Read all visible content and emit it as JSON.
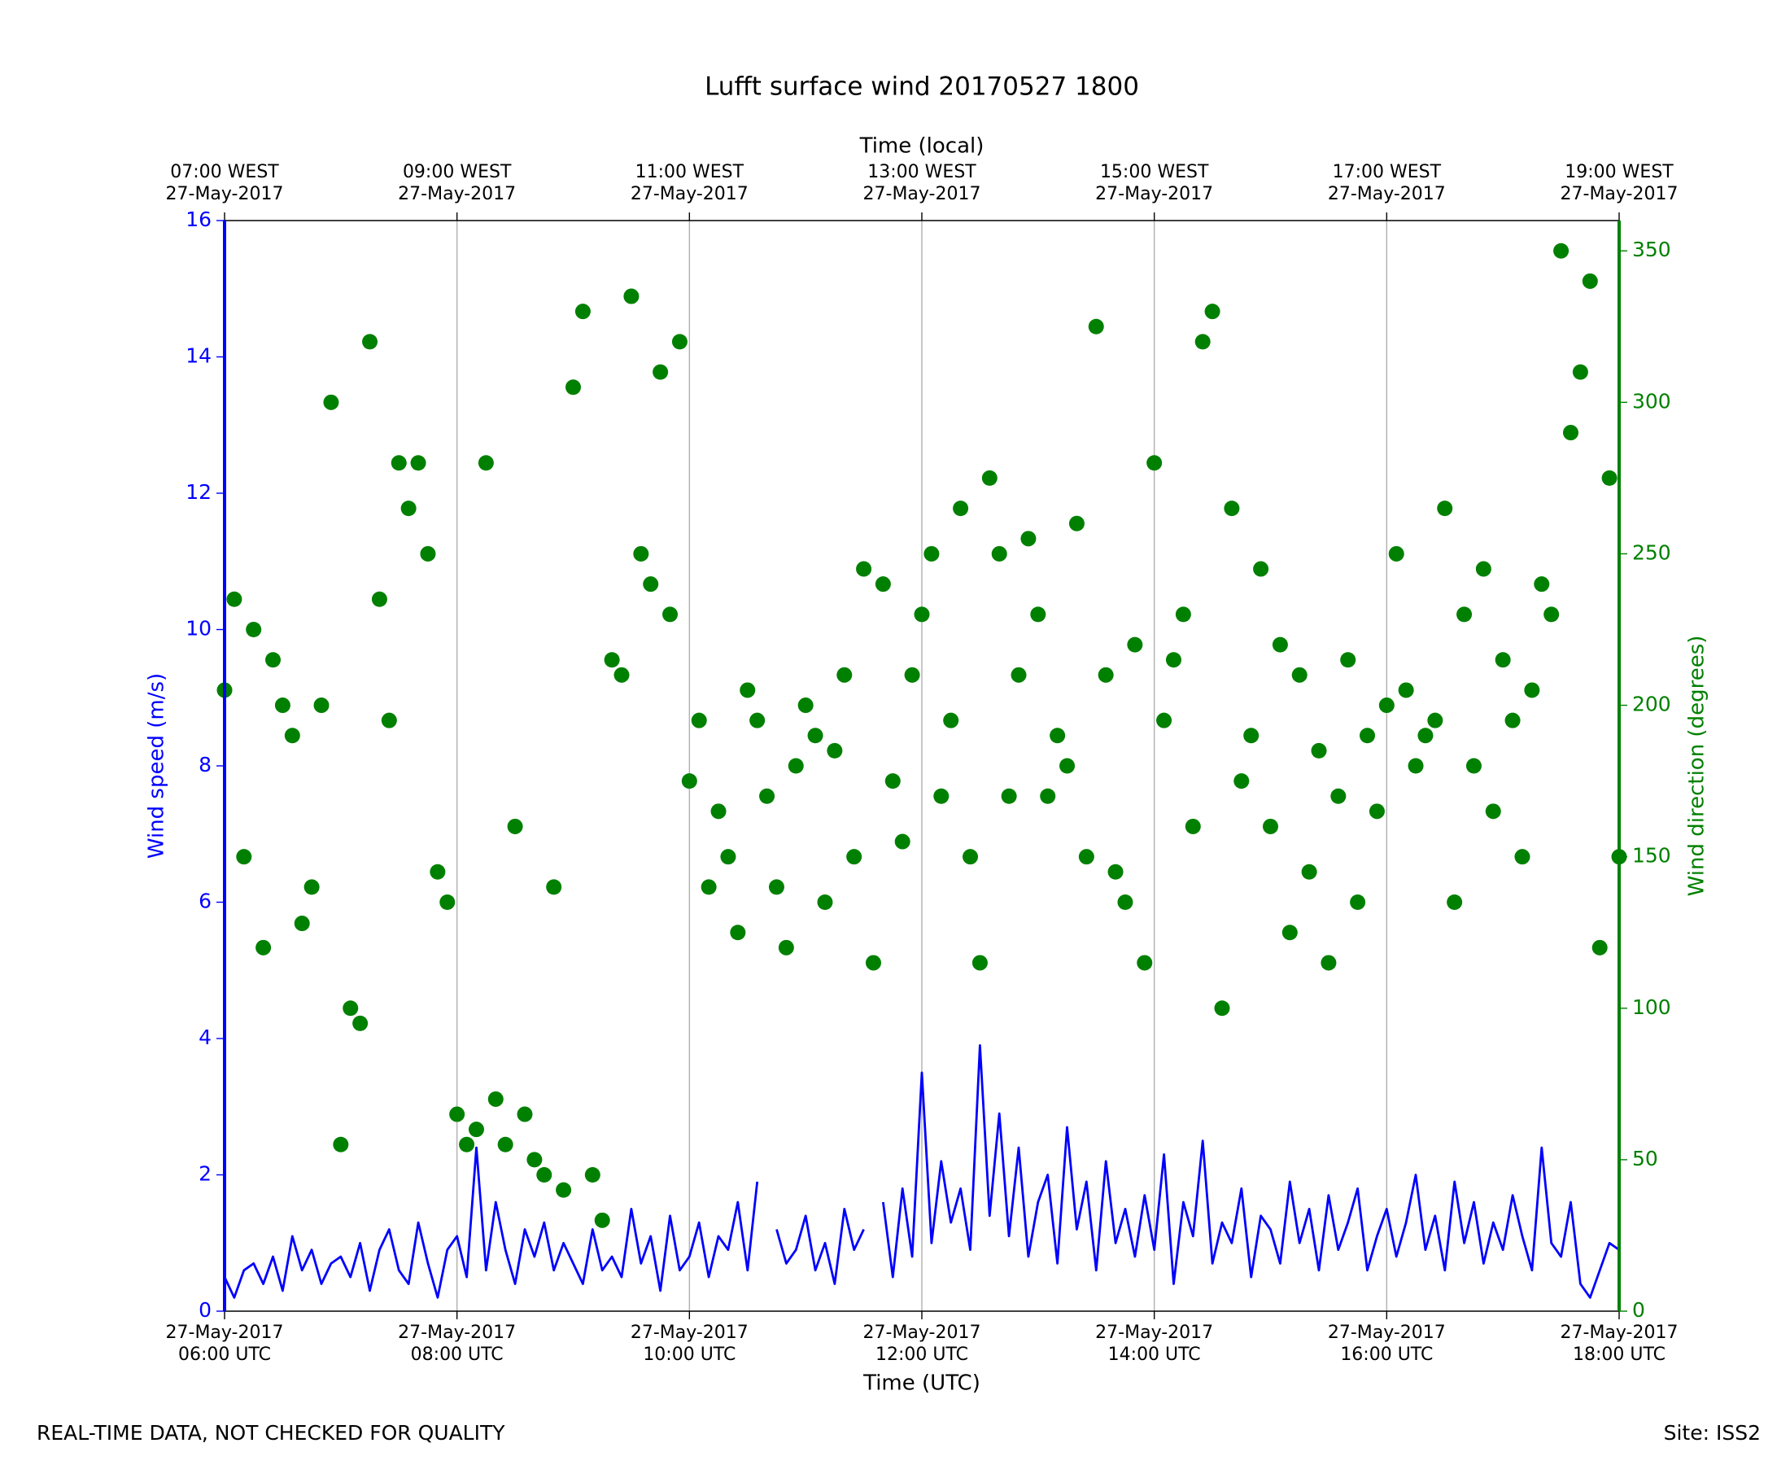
{
  "chart_data": {
    "type": "line",
    "title": "Lufft surface wind 20170527 1800",
    "xlabel": "Time (UTC)",
    "x2label": "Time (local)",
    "ylabel": "Wind speed (m/s)",
    "y2label": "Wind direction (degrees)",
    "footer_left": "REAL-TIME DATA, NOT CHECKED FOR QUALITY",
    "footer_right": "Site: ISS2",
    "grid": "x",
    "xlim": [
      "06:00",
      "18:00"
    ],
    "xticks": [
      {
        "value": "06:00",
        "label": [
          "27-May-2017",
          "06:00 UTC"
        ]
      },
      {
        "value": "08:00",
        "label": [
          "27-May-2017",
          "08:00 UTC"
        ]
      },
      {
        "value": "10:00",
        "label": [
          "27-May-2017",
          "10:00 UTC"
        ]
      },
      {
        "value": "12:00",
        "label": [
          "27-May-2017",
          "12:00 UTC"
        ]
      },
      {
        "value": "14:00",
        "label": [
          "27-May-2017",
          "14:00 UTC"
        ]
      },
      {
        "value": "16:00",
        "label": [
          "27-May-2017",
          "16:00 UTC"
        ]
      },
      {
        "value": "18:00",
        "label": [
          "27-May-2017",
          "18:00 UTC"
        ]
      }
    ],
    "x2ticks": [
      {
        "value": "06:00",
        "label": [
          "07:00 WEST",
          "27-May-2017"
        ]
      },
      {
        "value": "08:00",
        "label": [
          "09:00 WEST",
          "27-May-2017"
        ]
      },
      {
        "value": "10:00",
        "label": [
          "11:00 WEST",
          "27-May-2017"
        ]
      },
      {
        "value": "12:00",
        "label": [
          "13:00 WEST",
          "27-May-2017"
        ]
      },
      {
        "value": "14:00",
        "label": [
          "15:00 WEST",
          "27-May-2017"
        ]
      },
      {
        "value": "16:00",
        "label": [
          "17:00 WEST",
          "27-May-2017"
        ]
      },
      {
        "value": "18:00",
        "label": [
          "19:00 WEST",
          "27-May-2017"
        ]
      }
    ],
    "ylim": [
      0,
      16
    ],
    "yticks": [
      0,
      2,
      4,
      6,
      8,
      10,
      12,
      14,
      16
    ],
    "y2lim": [
      0,
      360
    ],
    "y2ticks": [
      0,
      50,
      100,
      150,
      200,
      250,
      300,
      350
    ],
    "x": [
      "06:00",
      "06:05",
      "06:10",
      "06:15",
      "06:20",
      "06:25",
      "06:30",
      "06:35",
      "06:40",
      "06:45",
      "06:50",
      "06:55",
      "07:00",
      "07:05",
      "07:10",
      "07:15",
      "07:20",
      "07:25",
      "07:30",
      "07:35",
      "07:40",
      "07:45",
      "07:50",
      "07:55",
      "08:00",
      "08:05",
      "08:10",
      "08:15",
      "08:20",
      "08:25",
      "08:30",
      "08:35",
      "08:40",
      "08:45",
      "08:50",
      "08:55",
      "09:00",
      "09:05",
      "09:10",
      "09:15",
      "09:20",
      "09:25",
      "09:30",
      "09:35",
      "09:40",
      "09:45",
      "09:50",
      "09:55",
      "10:00",
      "10:05",
      "10:10",
      "10:15",
      "10:20",
      "10:25",
      "10:30",
      "10:35",
      "10:40",
      "10:45",
      "10:50",
      "10:55",
      "11:00",
      "11:05",
      "11:10",
      "11:15",
      "11:20",
      "11:25",
      "11:30",
      "11:35",
      "11:40",
      "11:45",
      "11:50",
      "11:55",
      "12:00",
      "12:05",
      "12:10",
      "12:15",
      "12:20",
      "12:25",
      "12:30",
      "12:35",
      "12:40",
      "12:45",
      "12:50",
      "12:55",
      "13:00",
      "13:05",
      "13:10",
      "13:15",
      "13:20",
      "13:25",
      "13:30",
      "13:35",
      "13:40",
      "13:45",
      "13:50",
      "13:55",
      "14:00",
      "14:05",
      "14:10",
      "14:15",
      "14:20",
      "14:25",
      "14:30",
      "14:35",
      "14:40",
      "14:45",
      "14:50",
      "14:55",
      "15:00",
      "15:05",
      "15:10",
      "15:15",
      "15:20",
      "15:25",
      "15:30",
      "15:35",
      "15:40",
      "15:45",
      "15:50",
      "15:55",
      "16:00",
      "16:05",
      "16:10",
      "16:15",
      "16:20",
      "16:25",
      "16:30",
      "16:35",
      "16:40",
      "16:45",
      "16:50",
      "16:55",
      "17:00",
      "17:05",
      "17:10",
      "17:15",
      "17:20",
      "17:25",
      "17:30",
      "17:35",
      "17:40",
      "17:45",
      "17:50",
      "17:55",
      "18:00"
    ],
    "series": [
      {
        "type": "line",
        "axis": "y",
        "color": "#0000ff",
        "values": [
          0.5,
          0.2,
          0.6,
          0.7,
          0.4,
          0.8,
          0.3,
          1.1,
          0.6,
          0.9,
          0.4,
          0.7,
          0.8,
          0.5,
          1.0,
          0.3,
          0.9,
          1.2,
          0.6,
          0.4,
          1.3,
          0.7,
          0.2,
          0.9,
          1.1,
          0.5,
          2.4,
          0.6,
          1.6,
          0.9,
          0.4,
          1.2,
          0.8,
          1.3,
          0.6,
          1.0,
          0.7,
          0.4,
          1.2,
          0.6,
          0.8,
          0.5,
          1.5,
          0.7,
          1.1,
          0.3,
          1.4,
          0.6,
          0.8,
          1.3,
          0.5,
          1.1,
          0.9,
          1.6,
          0.6,
          1.9,
          null,
          1.2,
          0.7,
          0.9,
          1.4,
          0.6,
          1.0,
          0.4,
          1.5,
          0.9,
          1.2,
          null,
          1.6,
          0.5,
          1.8,
          0.8,
          3.5,
          1.0,
          2.2,
          1.3,
          1.8,
          0.9,
          3.9,
          1.4,
          2.9,
          1.1,
          2.4,
          0.8,
          1.6,
          2.0,
          0.7,
          2.7,
          1.2,
          1.9,
          0.6,
          2.2,
          1.0,
          1.5,
          0.8,
          1.7,
          0.9,
          2.3,
          0.4,
          1.6,
          1.1,
          2.5,
          0.7,
          1.3,
          1.0,
          1.8,
          0.5,
          1.4,
          1.2,
          0.7,
          1.9,
          1.0,
          1.5,
          0.6,
          1.7,
          0.9,
          1.3,
          1.8,
          0.6,
          1.1,
          1.5,
          0.8,
          1.3,
          2.0,
          0.9,
          1.4,
          0.6,
          1.9,
          1.0,
          1.6,
          0.7,
          1.3,
          0.9,
          1.7,
          1.1,
          0.6,
          2.4,
          1.0,
          0.8,
          1.6,
          0.4,
          0.2,
          0.6,
          1.0,
          0.9
        ]
      },
      {
        "type": "scatter",
        "axis": "y2",
        "color": "#008000",
        "values": [
          205,
          235,
          150,
          225,
          120,
          215,
          200,
          190,
          128,
          140,
          200,
          300,
          55,
          100,
          95,
          320,
          235,
          195,
          280,
          265,
          280,
          250,
          145,
          135,
          65,
          55,
          60,
          280,
          70,
          55,
          160,
          65,
          50,
          45,
          140,
          40,
          305,
          330,
          45,
          30,
          215,
          210,
          335,
          250,
          240,
          310,
          230,
          320,
          175,
          195,
          140,
          165,
          150,
          125,
          205,
          195,
          170,
          140,
          120,
          180,
          200,
          190,
          135,
          185,
          210,
          150,
          245,
          115,
          240,
          175,
          155,
          210,
          230,
          250,
          170,
          195,
          265,
          150,
          115,
          275,
          250,
          170,
          210,
          255,
          230,
          170,
          190,
          180,
          260,
          150,
          325,
          210,
          145,
          135,
          220,
          115,
          280,
          195,
          215,
          230,
          160,
          320,
          330,
          100,
          265,
          175,
          190,
          245,
          160,
          220,
          125,
          210,
          145,
          185,
          115,
          170,
          215,
          135,
          190,
          165,
          200,
          250,
          205,
          180,
          190,
          195,
          265,
          135,
          230,
          180,
          245,
          165,
          215,
          195,
          150,
          205,
          240,
          230,
          350,
          290,
          310,
          340,
          120,
          275,
          150
        ]
      }
    ]
  }
}
